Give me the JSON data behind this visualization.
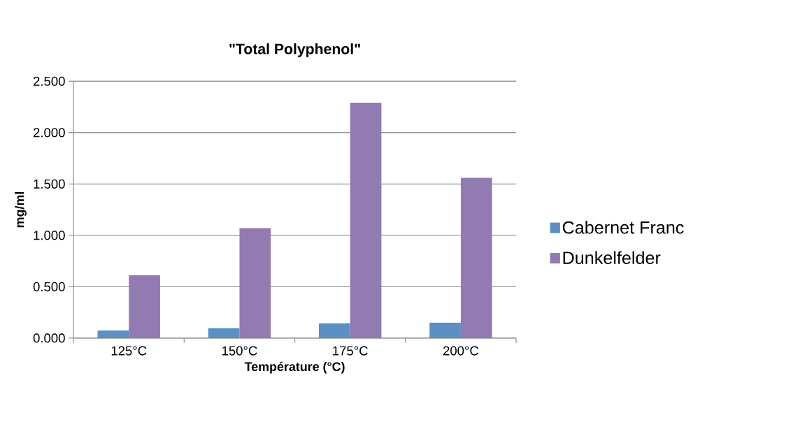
{
  "chart_data": {
    "type": "bar",
    "title": "\"Total Polyphenol\"",
    "xlabel": "Température (°C)",
    "ylabel": "mg/ml",
    "categories": [
      "125°C",
      "150°C",
      "175°C",
      "200°C"
    ],
    "series": [
      {
        "name": "Cabernet Franc",
        "color": "#5b90c6",
        "values": [
          0.074,
          0.097,
          0.143,
          0.151
        ]
      },
      {
        "name": "Dunkelfelder",
        "color": "#927bb2",
        "values": [
          0.611,
          1.071,
          2.291,
          1.56
        ]
      }
    ],
    "ylim": [
      0,
      2.5
    ],
    "yticks": [
      {
        "value": 0,
        "label": "0.000"
      },
      {
        "value": 0.5,
        "label": "0.500"
      },
      {
        "value": 1,
        "label": "1.000"
      },
      {
        "value": 1.5,
        "label": "1.500"
      },
      {
        "value": 2,
        "label": "2.000"
      },
      {
        "value": 2.5,
        "label": "2.500"
      }
    ],
    "grid": "y",
    "legend": "right"
  }
}
